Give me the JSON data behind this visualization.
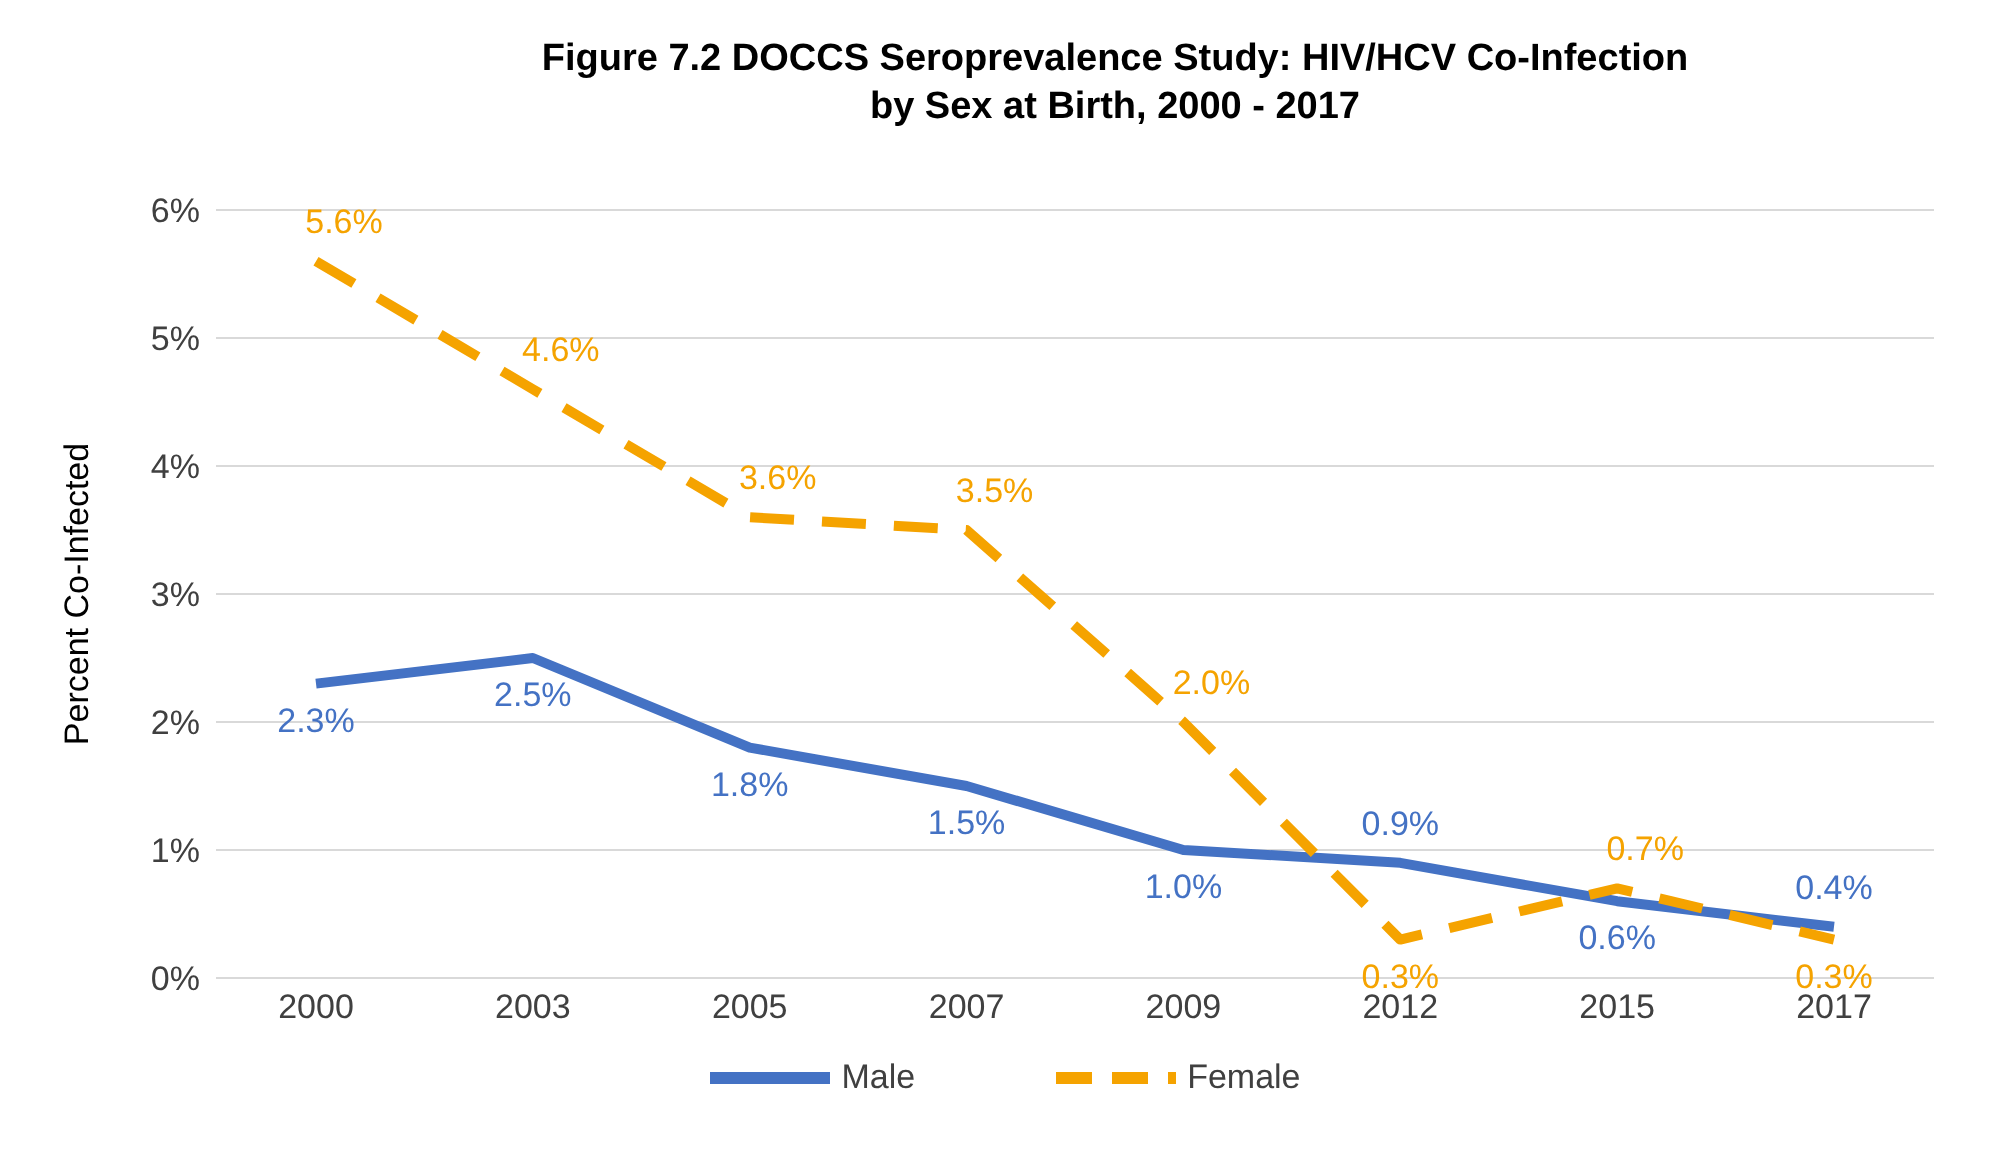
{
  "chart_data": {
    "type": "line",
    "title": "Figure 7.2 DOCCS  Seroprevalence Study: HIV/HCV Co-Infection\nby Sex at Birth, 2000 - 2017",
    "ylabel": "Percent Co-Infected",
    "categories": [
      "2000",
      "2003",
      "2005",
      "2007",
      "2009",
      "2012",
      "2015",
      "2017"
    ],
    "series": [
      {
        "name": "Male",
        "color": "#4472c4",
        "line_style": "solid",
        "values": [
          2.3,
          2.5,
          1.8,
          1.5,
          1.0,
          0.9,
          0.6,
          0.4
        ],
        "value_labels": [
          "2.3%",
          "2.5%",
          "1.8%",
          "1.5%",
          "1.0%",
          "0.9%",
          "0.6%",
          "0.4%"
        ]
      },
      {
        "name": "Female",
        "color": "#f5a300",
        "line_style": "dashed",
        "values": [
          5.6,
          4.6,
          3.6,
          3.5,
          2.0,
          0.3,
          0.7,
          0.3
        ],
        "value_labels": [
          "5.6%",
          "4.6%",
          "3.6%",
          "3.5%",
          "2.0%",
          "0.3%",
          "0.7%",
          "0.3%"
        ]
      }
    ],
    "ylim": [
      0,
      6
    ],
    "yticks": [
      {
        "value": 0,
        "label": "0%"
      },
      {
        "value": 1,
        "label": "1%"
      },
      {
        "value": 2,
        "label": "2%"
      },
      {
        "value": 3,
        "label": "3%"
      },
      {
        "value": 4,
        "label": "4%"
      },
      {
        "value": 5,
        "label": "5%"
      },
      {
        "value": 6,
        "label": "6%"
      }
    ],
    "grid": "y",
    "legend": "bottom",
    "marker": "none"
  }
}
